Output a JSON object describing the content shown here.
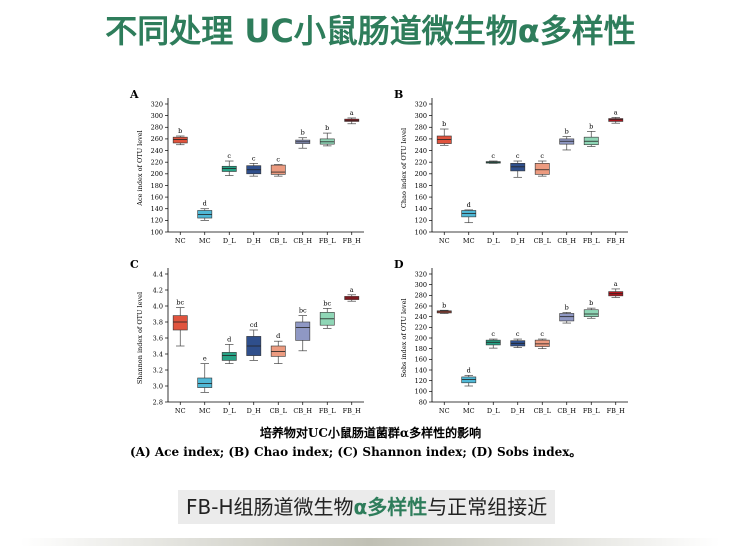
{
  "title": "不同处理 UC小鼠肠道微生物α多样性",
  "caption": {
    "title": "培养物对UC小鼠肠道菌群α多样性的影响",
    "legend": "(A) Ace index; (B) Chao index; (C) Shannon index; (D) Sobs index。"
  },
  "conclusion": {
    "part1": "FB-H组肠道微生物",
    "part2": "α多样性",
    "part3": "与正常组接近"
  },
  "colors": {
    "title_green": "#2e7d5b",
    "groups": [
      "#e0533d",
      "#4fb8d6",
      "#27a386",
      "#2f4f8c",
      "#ec9b80",
      "#8f98c4",
      "#8fd6b6",
      "#b8141e"
    ]
  },
  "chart_data": [
    {
      "type": "box",
      "panel_label": "A",
      "ylabel": "Ace index of OTU level",
      "categories": [
        "NC",
        "MC",
        "D_L",
        "D_H",
        "CB_L",
        "CB_H",
        "FB_L",
        "FB_H"
      ],
      "ylim": [
        100,
        320
      ],
      "yticks": [
        100,
        120,
        140,
        160,
        180,
        200,
        220,
        240,
        260,
        280,
        300,
        320
      ],
      "ytick_labels": [
        "100",
        "120",
        "140",
        "160",
        "180",
        "200",
        "220",
        "240",
        "260",
        "280",
        "300",
        "320"
      ],
      "letters": [
        "b",
        "d",
        "c",
        "c",
        "c",
        "b",
        "b",
        "a"
      ],
      "boxes": [
        {
          "min": 250,
          "q1": 253,
          "median": 259,
          "q3": 263,
          "max": 265
        },
        {
          "min": 120,
          "q1": 124,
          "median": 130,
          "q3": 137,
          "max": 140
        },
        {
          "min": 197,
          "q1": 204,
          "median": 209,
          "q3": 213,
          "max": 222
        },
        {
          "min": 196,
          "q1": 200,
          "median": 207,
          "q3": 214,
          "max": 218
        },
        {
          "min": 196,
          "q1": 199,
          "median": 203,
          "q3": 215,
          "max": 216
        },
        {
          "min": 244,
          "q1": 252,
          "median": 255,
          "q3": 258,
          "max": 262
        },
        {
          "min": 248,
          "q1": 251,
          "median": 255,
          "q3": 260,
          "max": 270
        },
        {
          "min": 286,
          "q1": 290,
          "median": 292,
          "q3": 294,
          "max": 296
        }
      ]
    },
    {
      "type": "box",
      "panel_label": "B",
      "ylabel": "Chao index of OTU level",
      "categories": [
        "NC",
        "MC",
        "D_L",
        "D_H",
        "CB_L",
        "CB_H",
        "FB_L",
        "FB_H"
      ],
      "ylim": [
        100,
        320
      ],
      "yticks": [
        100,
        120,
        140,
        160,
        180,
        200,
        220,
        240,
        260,
        280,
        300,
        320
      ],
      "ytick_labels": [
        "100",
        "120",
        "140",
        "160",
        "180",
        "200",
        "220",
        "240",
        "260",
        "280",
        "300",
        "320"
      ],
      "letters": [
        "b",
        "d",
        "c",
        "c",
        "c",
        "b",
        "b",
        "a"
      ],
      "boxes": [
        {
          "min": 249,
          "q1": 252,
          "median": 259,
          "q3": 265,
          "max": 277
        },
        {
          "min": 116,
          "q1": 126,
          "median": 132,
          "q3": 137,
          "max": 138
        },
        {
          "min": 218,
          "q1": 219,
          "median": 220,
          "q3": 221,
          "max": 222
        },
        {
          "min": 194,
          "q1": 205,
          "median": 212,
          "q3": 218,
          "max": 222
        },
        {
          "min": 196,
          "q1": 199,
          "median": 207,
          "q3": 218,
          "max": 222
        },
        {
          "min": 241,
          "q1": 251,
          "median": 256,
          "q3": 260,
          "max": 264
        },
        {
          "min": 247,
          "q1": 250,
          "median": 256,
          "q3": 263,
          "max": 273
        },
        {
          "min": 287,
          "q1": 290,
          "median": 293,
          "q3": 295,
          "max": 297
        }
      ]
    },
    {
      "type": "box",
      "panel_label": "C",
      "ylabel": "Shannon index of OTU level",
      "categories": [
        "NC",
        "MC",
        "D_L",
        "D_H",
        "CB_L",
        "CB_H",
        "FB_L",
        "FB_H"
      ],
      "ylim": [
        2.8,
        4.4
      ],
      "yticks": [
        2.8,
        3.0,
        3.2,
        3.4,
        3.6,
        3.8,
        4.0,
        4.2,
        4.4
      ],
      "ytick_labels": [
        "2.8",
        "3.0",
        "3.2",
        "3.4",
        "3.6",
        "3.8",
        "4.0",
        "4.2",
        "4.4"
      ],
      "letters": [
        "bc",
        "e",
        "d",
        "cd",
        "d",
        "bc",
        "bc",
        "a"
      ],
      "boxes": [
        {
          "min": 3.5,
          "q1": 3.7,
          "median": 3.8,
          "q3": 3.88,
          "max": 3.98
        },
        {
          "min": 2.92,
          "q1": 2.98,
          "median": 3.03,
          "q3": 3.1,
          "max": 3.28
        },
        {
          "min": 3.28,
          "q1": 3.32,
          "median": 3.38,
          "q3": 3.42,
          "max": 3.52
        },
        {
          "min": 3.32,
          "q1": 3.38,
          "median": 3.5,
          "q3": 3.62,
          "max": 3.7
        },
        {
          "min": 3.28,
          "q1": 3.37,
          "median": 3.43,
          "q3": 3.5,
          "max": 3.56
        },
        {
          "min": 3.44,
          "q1": 3.57,
          "median": 3.73,
          "q3": 3.8,
          "max": 3.88
        },
        {
          "min": 3.72,
          "q1": 3.76,
          "median": 3.84,
          "q3": 3.92,
          "max": 3.97
        },
        {
          "min": 4.06,
          "q1": 4.08,
          "median": 4.1,
          "q3": 4.12,
          "max": 4.14
        }
      ]
    },
    {
      "type": "box",
      "panel_label": "D",
      "ylabel": "Sobs index of OTU level",
      "categories": [
        "NC",
        "MC",
        "D_L",
        "D_H",
        "CB_L",
        "CB_H",
        "FB_L",
        "FB_H"
      ],
      "ylim": [
        80,
        320
      ],
      "yticks": [
        80,
        100,
        120,
        140,
        160,
        180,
        200,
        220,
        240,
        260,
        280,
        300,
        320
      ],
      "ytick_labels": [
        "80",
        "100",
        "120",
        "140",
        "160",
        "180",
        "200",
        "220",
        "240",
        "260",
        "280",
        "300",
        "320"
      ],
      "letters": [
        "b",
        "d",
        "c",
        "c",
        "c",
        "b",
        "b",
        "a"
      ],
      "boxes": [
        {
          "min": 246,
          "q1": 247,
          "median": 249,
          "q3": 251,
          "max": 252
        },
        {
          "min": 110,
          "q1": 116,
          "median": 122,
          "q3": 127,
          "max": 130
        },
        {
          "min": 181,
          "q1": 187,
          "median": 192,
          "q3": 196,
          "max": 198
        },
        {
          "min": 182,
          "q1": 185,
          "median": 190,
          "q3": 195,
          "max": 198
        },
        {
          "min": 180,
          "q1": 184,
          "median": 189,
          "q3": 196,
          "max": 198
        },
        {
          "min": 228,
          "q1": 232,
          "median": 240,
          "q3": 246,
          "max": 248
        },
        {
          "min": 237,
          "q1": 240,
          "median": 245,
          "q3": 253,
          "max": 256
        },
        {
          "min": 276,
          "q1": 279,
          "median": 283,
          "q3": 287,
          "max": 292
        }
      ]
    }
  ]
}
